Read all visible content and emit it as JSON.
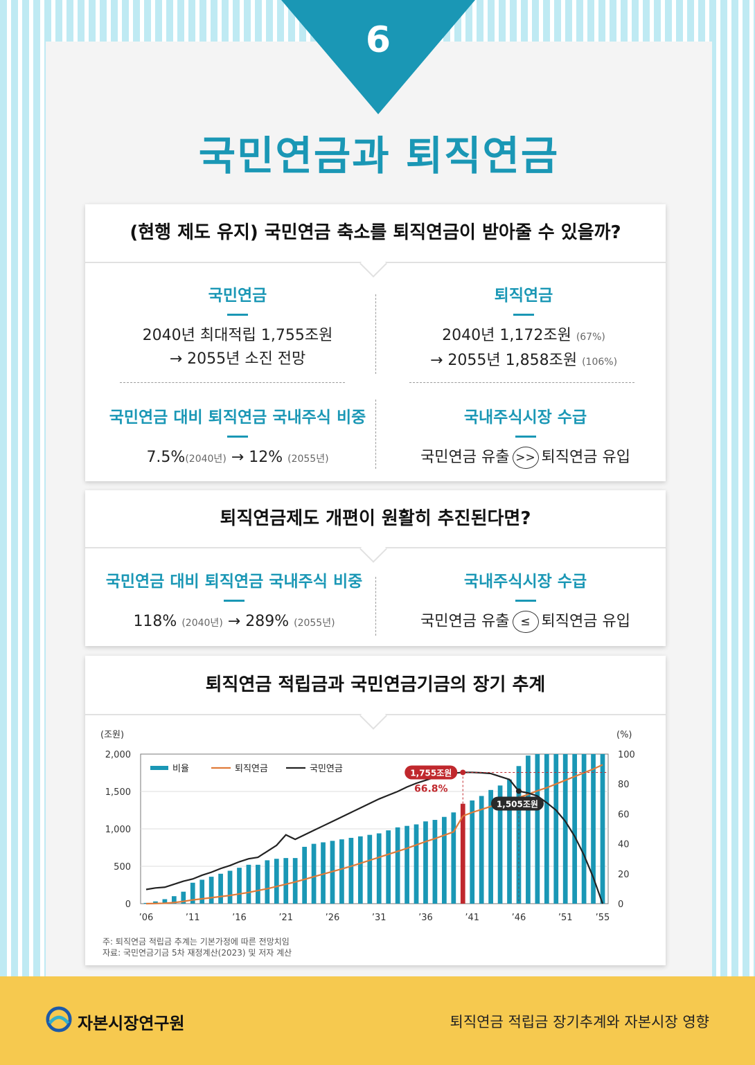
{
  "header": {
    "number": "6",
    "title": "국민연금과 퇴직연금"
  },
  "section1": {
    "question": "(현행 제도 유지) 국민연금 축소를 퇴직연금이 받아줄 수 있을까?",
    "nps": {
      "title": "국민연금",
      "line1": "2040년 최대적립 1,755조원",
      "line2": "→ 2055년 소진 전망"
    },
    "rp": {
      "title": "퇴직연금",
      "line1": "2040년 1,172조원",
      "line1_note": "(67%)",
      "line2": "→ 2055년 1,858조원",
      "line2_note": "(106%)"
    },
    "ratio": {
      "title": "국민연금 대비 퇴직연금 국내주식 비중",
      "v1": "7.5%",
      "v1_note": "(2040년)",
      "arrow": "→",
      "v2": "12%",
      "v2_note": "(2055년)"
    },
    "supply": {
      "title": "국내주식시장 수급",
      "left": "국민연금 유출",
      "symbol": ">>",
      "right": "퇴직연금 유입"
    }
  },
  "section2": {
    "question": "퇴직연금제도 개편이 원활히 추진된다면?",
    "ratio": {
      "title": "국민연금 대비 퇴직연금 국내주식 비중",
      "v1": "118%",
      "v1_note": "(2040년)",
      "arrow": "→",
      "v2": "289%",
      "v2_note": "(2055년)"
    },
    "supply": {
      "title": "국내주식시장 수급",
      "left": "국민연금 유출",
      "symbol": "≤",
      "right": "퇴직연금 유입"
    }
  },
  "section3": {
    "title": "퇴직연금 적립금과 국민연금기금의 장기 추계",
    "note1": "주: 퇴직연금 적립금 추계는 기본가정에 따른 전망치임",
    "note2": "자료: 국민연금기금 5차 재정계산(2023) 및 저자 계산"
  },
  "chart_data": {
    "type": "bar",
    "ylabel_left": "(조원)",
    "ylabel_right": "(%)",
    "ylim_left": [
      0,
      2000
    ],
    "ylim_right": [
      0,
      100
    ],
    "left_ticks": [
      0,
      500,
      1000,
      1500,
      2000
    ],
    "right_ticks": [
      0,
      20,
      40,
      60,
      80,
      100
    ],
    "x_ticks": [
      "’06",
      "’11",
      "’16",
      "’21",
      "’26",
      "’31",
      "’36",
      "’41",
      "’46",
      "’51",
      "’55"
    ],
    "x": [
      2006,
      2007,
      2008,
      2009,
      2010,
      2011,
      2012,
      2013,
      2014,
      2015,
      2016,
      2017,
      2018,
      2019,
      2020,
      2021,
      2022,
      2023,
      2024,
      2025,
      2026,
      2027,
      2028,
      2029,
      2030,
      2031,
      2032,
      2033,
      2034,
      2035,
      2036,
      2037,
      2038,
      2039,
      2040,
      2041,
      2042,
      2043,
      2044,
      2045,
      2046,
      2047,
      2048,
      2049,
      2050,
      2051,
      2052,
      2053,
      2054,
      2055
    ],
    "grid": true,
    "legend": "top-left",
    "legend_labels": [
      "비율",
      "퇴직연금",
      "국민연금"
    ],
    "series": [
      {
        "name": "비율",
        "type": "bar",
        "axis": "right",
        "color": "#1a97b5",
        "values": [
          0.5,
          1.5,
          3,
          5,
          8,
          14,
          16,
          18,
          20,
          22,
          24,
          26,
          26,
          29,
          30,
          30.5,
          30.5,
          38,
          40,
          41,
          42,
          43,
          44,
          45,
          46,
          47,
          49,
          51,
          52,
          53,
          55,
          56,
          58,
          61,
          66.8,
          69,
          72,
          76,
          79,
          83,
          92,
          99,
          100,
          100,
          100,
          100,
          100,
          100,
          100,
          100
        ]
      },
      {
        "name": "퇴직연금",
        "type": "line",
        "axis": "left",
        "color": "#e07b39",
        "values": [
          0,
          2,
          5,
          15,
          30,
          50,
          65,
          80,
          95,
          110,
          130,
          150,
          175,
          200,
          230,
          260,
          290,
          325,
          360,
          395,
          430,
          465,
          500,
          540,
          580,
          620,
          660,
          700,
          740,
          785,
          830,
          870,
          915,
          960,
          1172,
          1220,
          1260,
          1300,
          1340,
          1380,
          1420,
          1460,
          1510,
          1550,
          1600,
          1650,
          1700,
          1750,
          1800,
          1858
        ]
      },
      {
        "name": "국민연금",
        "type": "line",
        "axis": "left",
        "color": "#222222",
        "values": [
          190,
          210,
          220,
          260,
          300,
          330,
          380,
          420,
          470,
          510,
          560,
          600,
          620,
          700,
          780,
          920,
          860,
          920,
          980,
          1040,
          1100,
          1160,
          1220,
          1280,
          1340,
          1400,
          1450,
          1500,
          1560,
          1610,
          1650,
          1690,
          1720,
          1745,
          1755,
          1755,
          1750,
          1740,
          1700,
          1660,
          1505,
          1480,
          1440,
          1350,
          1250,
          1100,
          900,
          650,
          350,
          0
        ]
      }
    ],
    "annotations": [
      {
        "x": 2040,
        "series": "국민연금",
        "label": "1,755조원",
        "sub": "66.8%"
      },
      {
        "x": 2046,
        "series": "국민연금",
        "label": "1,505조원"
      }
    ]
  },
  "footer": {
    "org": "자본시장연구원",
    "subtitle": "퇴직연금 적립금 장기추계와 자본시장 영향"
  }
}
